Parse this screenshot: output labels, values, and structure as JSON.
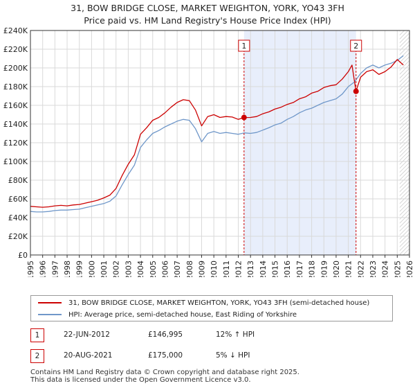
{
  "chart_data": {
    "type": "line",
    "title": "31, BOW BRIDGE CLOSE, MARKET WEIGHTON, YORK, YO43 3FH",
    "subtitle": "Price paid vs. HM Land Registry's House Price Index (HPI)",
    "xlabel": "",
    "ylabel": "",
    "xlim": [
      1995,
      2026
    ],
    "ylim": [
      0,
      240000
    ],
    "y_ticks": [
      0,
      20000,
      40000,
      60000,
      80000,
      100000,
      120000,
      140000,
      160000,
      180000,
      200000,
      220000,
      240000
    ],
    "y_tick_labels": [
      "£0",
      "£20K",
      "£40K",
      "£60K",
      "£80K",
      "£100K",
      "£120K",
      "£140K",
      "£160K",
      "£180K",
      "£200K",
      "£220K",
      "£240K"
    ],
    "x_ticks": [
      1995,
      1996,
      1997,
      1998,
      1999,
      2000,
      2001,
      2002,
      2003,
      2004,
      2005,
      2006,
      2007,
      2008,
      2009,
      2010,
      2011,
      2012,
      2013,
      2014,
      2015,
      2016,
      2017,
      2018,
      2019,
      2020,
      2021,
      2022,
      2023,
      2024,
      2025,
      2026
    ],
    "x_tick_labels": [
      "1995",
      "1996",
      "1997",
      "1998",
      "1999",
      "2000",
      "2001",
      "2002",
      "2003",
      "2004",
      "2005",
      "2006",
      "2007",
      "2008",
      "2009",
      "2010",
      "2011",
      "2012",
      "2013",
      "2014",
      "2015",
      "2016",
      "2017",
      "2018",
      "2019",
      "2020",
      "2021",
      "2022",
      "2023",
      "2024",
      "2025",
      "2026"
    ],
    "grid": true,
    "shaded_region": {
      "from": 2012.47,
      "to": 2021.63
    },
    "hatched_region_from": 2025.2,
    "series": [
      {
        "name": "31, BOW BRIDGE CLOSE, MARKET WEIGHTON, YORK, YO43 3FH (semi-detached house)",
        "color": "#cc0000",
        "x": [
          1995,
          1995.5,
          1996,
          1996.5,
          1997,
          1997.5,
          1998,
          1998.5,
          1999,
          1999.5,
          2000,
          2000.5,
          2001,
          2001.5,
          2002,
          2002.5,
          2003,
          2003.5,
          2004,
          2004.5,
          2005,
          2005.5,
          2006,
          2006.5,
          2007,
          2007.5,
          2008,
          2008.5,
          2009,
          2009.5,
          2010,
          2010.5,
          2011,
          2011.5,
          2012,
          2012.47,
          2013,
          2013.5,
          2014,
          2014.5,
          2015,
          2015.5,
          2016,
          2016.5,
          2017,
          2017.5,
          2018,
          2018.5,
          2019,
          2019.5,
          2020,
          2020.5,
          2021,
          2021.3,
          2021.63,
          2022,
          2022.5,
          2023,
          2023.5,
          2024,
          2024.5,
          2025,
          2025.5
        ],
        "values": [
          52000,
          51500,
          51000,
          51500,
          52500,
          53000,
          52500,
          53500,
          54000,
          55500,
          57000,
          58500,
          61000,
          64000,
          71000,
          85000,
          97000,
          107000,
          129000,
          136000,
          144000,
          147000,
          152000,
          158000,
          163000,
          166000,
          165000,
          155000,
          138000,
          148000,
          150000,
          147000,
          148000,
          147500,
          145000,
          146995,
          147000,
          148000,
          151000,
          153000,
          156000,
          158000,
          161000,
          163000,
          167000,
          169000,
          173000,
          175000,
          179000,
          181000,
          182000,
          188000,
          196000,
          203000,
          175000,
          190000,
          196000,
          198000,
          193000,
          196000,
          201000,
          209000,
          203000
        ]
      },
      {
        "name": "HPI: Average price, semi-detached house, East Riding of Yorkshire",
        "color": "#6f97c9",
        "x": [
          1995,
          1995.5,
          1996,
          1996.5,
          1997,
          1997.5,
          1998,
          1998.5,
          1999,
          1999.5,
          2000,
          2000.5,
          2001,
          2001.5,
          2002,
          2002.5,
          2003,
          2003.5,
          2004,
          2004.5,
          2005,
          2005.5,
          2006,
          2006.5,
          2007,
          2007.5,
          2008,
          2008.5,
          2009,
          2009.5,
          2010,
          2010.5,
          2011,
          2011.5,
          2012,
          2012.5,
          2013,
          2013.5,
          2014,
          2014.5,
          2015,
          2015.5,
          2016,
          2016.5,
          2017,
          2017.5,
          2018,
          2018.5,
          2019,
          2019.5,
          2020,
          2020.5,
          2021,
          2021.5,
          2022,
          2022.5,
          2023,
          2023.5,
          2024,
          2024.5,
          2025,
          2025.5
        ],
        "values": [
          46500,
          46000,
          46000,
          46500,
          47500,
          48000,
          48000,
          48500,
          49000,
          50500,
          52000,
          53500,
          55000,
          57500,
          63000,
          75000,
          86000,
          96000,
          115000,
          123000,
          130000,
          133000,
          137000,
          140000,
          143000,
          145000,
          144000,
          135000,
          121000,
          130000,
          132000,
          130000,
          131000,
          130000,
          129000,
          130500,
          130000,
          131000,
          133500,
          136000,
          139000,
          141000,
          145000,
          148000,
          152000,
          155000,
          157000,
          160000,
          163000,
          165000,
          167000,
          172000,
          180000,
          185000,
          194000,
          200000,
          203000,
          200000,
          203000,
          205000,
          208000,
          213000
        ]
      }
    ],
    "annotations": [
      {
        "label": "1",
        "x": 2012.47,
        "y": 146995
      },
      {
        "label": "2",
        "x": 2021.63,
        "y": 175000
      }
    ]
  },
  "legend": {
    "property_label": "31, BOW BRIDGE CLOSE, MARKET WEIGHTON, YORK, YO43 3FH (semi-detached house)",
    "hpi_label": "HPI: Average price, semi-detached house, East Riding of Yorkshire",
    "property_color": "#cc0000",
    "hpi_color": "#6f97c9"
  },
  "transactions": [
    {
      "num": "1",
      "date": "22-JUN-2012",
      "price": "£146,995",
      "hpi": "12% ↑ HPI"
    },
    {
      "num": "2",
      "date": "20-AUG-2021",
      "price": "£175,000",
      "hpi": "5% ↓ HPI"
    }
  ],
  "footer": {
    "line1": "Contains HM Land Registry data © Crown copyright and database right 2025.",
    "line2": "This data is licensed under the Open Government Licence v3.0."
  }
}
